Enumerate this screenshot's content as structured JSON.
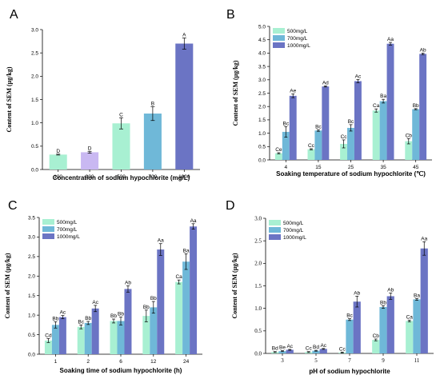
{
  "colors": {
    "c500": "#a8f0d2",
    "c700": "#6fb8d8",
    "c1000": "#6b74c4",
    "barA_100": "#a8f0d2",
    "barA_300": "#c9b8f2",
    "barA_500": "#a8f0d2",
    "barA_700": "#6fb8d8",
    "barA_1000": "#6b74c4"
  },
  "chart_data": [
    {
      "panel": "A",
      "type": "bar",
      "xlabel": "Concentration of sodium hypochlorite (mg/L)",
      "ylabel": "Content of SEM (μg/kg)",
      "ylim": [
        0,
        3.0
      ],
      "yticks": [
        "0.0",
        "0.5",
        "1.0",
        "1.5",
        "2.0",
        "2.5",
        "3.0"
      ],
      "categories": [
        "100",
        "300",
        "500",
        "700",
        "1000"
      ],
      "values": [
        0.32,
        0.37,
        0.99,
        1.2,
        2.7
      ],
      "errors": [
        0.01,
        0.02,
        0.12,
        0.15,
        0.12
      ],
      "labels": [
        "D",
        "D",
        "C",
        "B",
        "A"
      ]
    },
    {
      "panel": "B",
      "type": "bar",
      "xlabel": "Soaking temperature of sodium hypochlorite (℃)",
      "ylabel": "Content of SEM (μg/kg)",
      "ylim": [
        0,
        5.0
      ],
      "yticks": [
        "0.0",
        "0.5",
        "1.0",
        "1.5",
        "2.0",
        "2.5",
        "3.0",
        "3.5",
        "4.0",
        "4.5",
        "5.0"
      ],
      "categories": [
        "4",
        "15",
        "25",
        "35",
        "45"
      ],
      "series": [
        {
          "name": "500mg/L",
          "values": [
            0.25,
            0.4,
            0.6,
            1.85,
            0.7
          ],
          "errors": [
            0.02,
            0.02,
            0.15,
            0.06,
            0.1
          ],
          "labels": [
            "Ce",
            "Cc",
            "Cc",
            "Ca",
            "Cb"
          ]
        },
        {
          "name": "700mg/L",
          "values": [
            1.05,
            1.1,
            1.2,
            2.2,
            1.9
          ],
          "errors": [
            0.2,
            0.03,
            0.12,
            0.07,
            0.02
          ],
          "labels": [
            "Bc",
            "Bc",
            "Bc",
            "Ba",
            "Bb"
          ]
        },
        {
          "name": "1000mg/L",
          "values": [
            2.4,
            2.75,
            2.95,
            4.35,
            3.97
          ],
          "errors": [
            0.07,
            0.02,
            0.06,
            0.05,
            0.03
          ],
          "labels": [
            "Ae",
            "Ad",
            "Ac",
            "Aa",
            "Ab"
          ]
        }
      ]
    },
    {
      "panel": "C",
      "type": "bar",
      "xlabel": "Soaking time of sodium hypochlorite (h)",
      "ylabel": "Content of SEM (μg/kg)",
      "ylim": [
        0,
        3.5
      ],
      "yticks": [
        "0.0",
        "0.5",
        "1.0",
        "1.5",
        "2.0",
        "2.5",
        "3.0",
        "3.5"
      ],
      "categories": [
        "1",
        "2",
        "6",
        "12",
        "24"
      ],
      "series": [
        {
          "name": "500mg/L",
          "values": [
            0.35,
            0.7,
            0.85,
            0.98,
            1.85
          ],
          "errors": [
            0.05,
            0.05,
            0.05,
            0.15,
            0.05
          ],
          "labels": [
            "Cd",
            "Bc",
            "Bb",
            "Bb",
            "Ca"
          ]
        },
        {
          "name": "700mg/L",
          "values": [
            0.75,
            0.8,
            0.85,
            1.2,
            2.37
          ],
          "errors": [
            0.08,
            0.04,
            0.1,
            0.15,
            0.2
          ],
          "labels": [
            "Bb",
            "Bb",
            "Bb",
            "Bb",
            "Ba"
          ]
        },
        {
          "name": "1000mg/L",
          "values": [
            0.95,
            1.17,
            1.67,
            2.68,
            3.27
          ],
          "errors": [
            0.04,
            0.08,
            0.08,
            0.15,
            0.07
          ],
          "labels": [
            "Ac",
            "Ac",
            "Ab",
            "Aa",
            "Aa"
          ]
        }
      ]
    },
    {
      "panel": "D",
      "type": "bar",
      "xlabel": "pH of sodium hypochlorite",
      "ylabel": "Content of SEM (μg/kg)",
      "ylim": [
        0,
        3.0
      ],
      "yticks": [
        "0.0",
        "0.5",
        "1.0",
        "1.5",
        "2.0",
        "2.5",
        "3.0"
      ],
      "categories": [
        "3",
        "5",
        "7",
        "9",
        "11"
      ],
      "series": [
        {
          "name": "500mg/L",
          "values": [
            0.03,
            0.03,
            0.02,
            0.3,
            0.72
          ],
          "errors": [
            0.01,
            0.01,
            0.01,
            0.02,
            0.02
          ],
          "labels": [
            "Bd",
            "Cc",
            "Cc",
            "Cb",
            "Ca"
          ]
        },
        {
          "name": "700mg/L",
          "values": [
            0.05,
            0.06,
            0.75,
            1.03,
            1.2
          ],
          "errors": [
            0.01,
            0.01,
            0.02,
            0.03,
            0.02
          ],
          "labels": [
            "Be",
            "Bd",
            "Bc",
            "Bb",
            "Ba"
          ]
        },
        {
          "name": "1000mg/L",
          "values": [
            0.08,
            0.1,
            1.15,
            1.27,
            2.33
          ],
          "errors": [
            0.01,
            0.01,
            0.12,
            0.07,
            0.15
          ],
          "labels": [
            "Ac",
            "Ac",
            "Ab",
            "Ab",
            "Aa"
          ]
        }
      ]
    }
  ]
}
